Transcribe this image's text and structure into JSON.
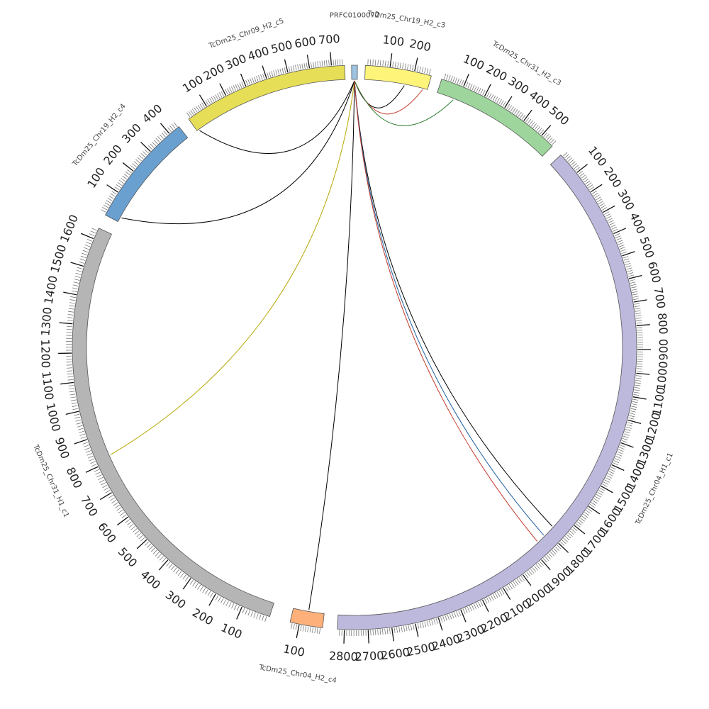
{
  "chart_data": {
    "type": "circos",
    "title": "",
    "tick_major_interval": 100,
    "tick_minor_interval": 10,
    "chromosomes": [
      {
        "id": "chr19_c4",
        "name": "TcDm25_Chr19_H2_c4",
        "length": 445,
        "color": "#6aa0d0",
        "labels": [
          100,
          200,
          300,
          400
        ]
      },
      {
        "id": "chr09_c5",
        "name": "TcDm25_Chr09_H2_c5",
        "length": 760,
        "color": "#e7de57",
        "labels": [
          100,
          200,
          300,
          400,
          500,
          600,
          700
        ]
      },
      {
        "id": "prfc",
        "name": "PRFC0100072",
        "length": 30,
        "color": "#9dc3e0",
        "labels": []
      },
      {
        "id": "chr19_c3",
        "name": "TcDm25_Chr19_H2_c3",
        "length": 270,
        "color": "#fff47a",
        "labels": [
          100,
          200
        ]
      },
      {
        "id": "chr31_c3",
        "name": "TcDm25_Chr31_H2_c3",
        "length": 565,
        "color": "#9ed59c",
        "labels": [
          100,
          200,
          300,
          400,
          500
        ]
      },
      {
        "id": "chr04_c1",
        "name": "TcDm25_Chr04_H1_c1",
        "length": 2830,
        "color": "#bcb9dc",
        "labels": [
          100,
          200,
          300,
          400,
          500,
          600,
          700,
          800,
          900,
          1000,
          1100,
          1200,
          1300,
          1400,
          1500,
          1600,
          1700,
          1800,
          1900,
          2000,
          2100,
          2200,
          2300,
          2400,
          2500,
          2600,
          2700,
          2800
        ]
      },
      {
        "id": "chr04_c4",
        "name": "TcDm25_Chr04_H2_c4",
        "length": 140,
        "color": "#fdb07a",
        "labels": [
          100
        ]
      },
      {
        "id": "chr31_c1",
        "name": "TcDm25_Chr31_H1_c1",
        "length": 1640,
        "color": "#b5b5b5",
        "labels": [
          100,
          200,
          300,
          400,
          500,
          600,
          700,
          800,
          900,
          1000,
          1100,
          1200,
          1300,
          1400,
          1500,
          1600
        ]
      }
    ],
    "links": [
      {
        "source": "prfc",
        "source_pos": 15,
        "target": "chr19_c3",
        "target_pos": 170,
        "color": "#000000"
      },
      {
        "source": "prfc",
        "source_pos": 15,
        "target": "chr19_c3",
        "target_pos": 250,
        "color": "#c0392b"
      },
      {
        "source": "prfc",
        "source_pos": 15,
        "target": "chr31_c3",
        "target_pos": 80,
        "color": "#2e7d32"
      },
      {
        "source": "prfc",
        "source_pos": 15,
        "target": "chr09_c5",
        "target_pos": 10,
        "color": "#000000"
      },
      {
        "source": "prfc",
        "source_pos": 15,
        "target": "chr19_c4",
        "target_pos": 20,
        "color": "#000000"
      },
      {
        "source": "prfc",
        "source_pos": 15,
        "target": "chr31_c1",
        "target_pos": 820,
        "color": "#b5a500"
      },
      {
        "source": "prfc",
        "source_pos": 15,
        "target": "chr04_c4",
        "target_pos": 70,
        "color": "#000000"
      },
      {
        "source": "prfc",
        "source_pos": 15,
        "target": "chr04_c1",
        "target_pos": 1765,
        "color": "#000000"
      },
      {
        "source": "prfc",
        "source_pos": 15,
        "target": "chr04_c1",
        "target_pos": 1820,
        "color": "#1f5fa0"
      },
      {
        "source": "prfc",
        "source_pos": 15,
        "target": "chr04_c1",
        "target_pos": 1860,
        "color": "#c0392b"
      }
    ]
  }
}
